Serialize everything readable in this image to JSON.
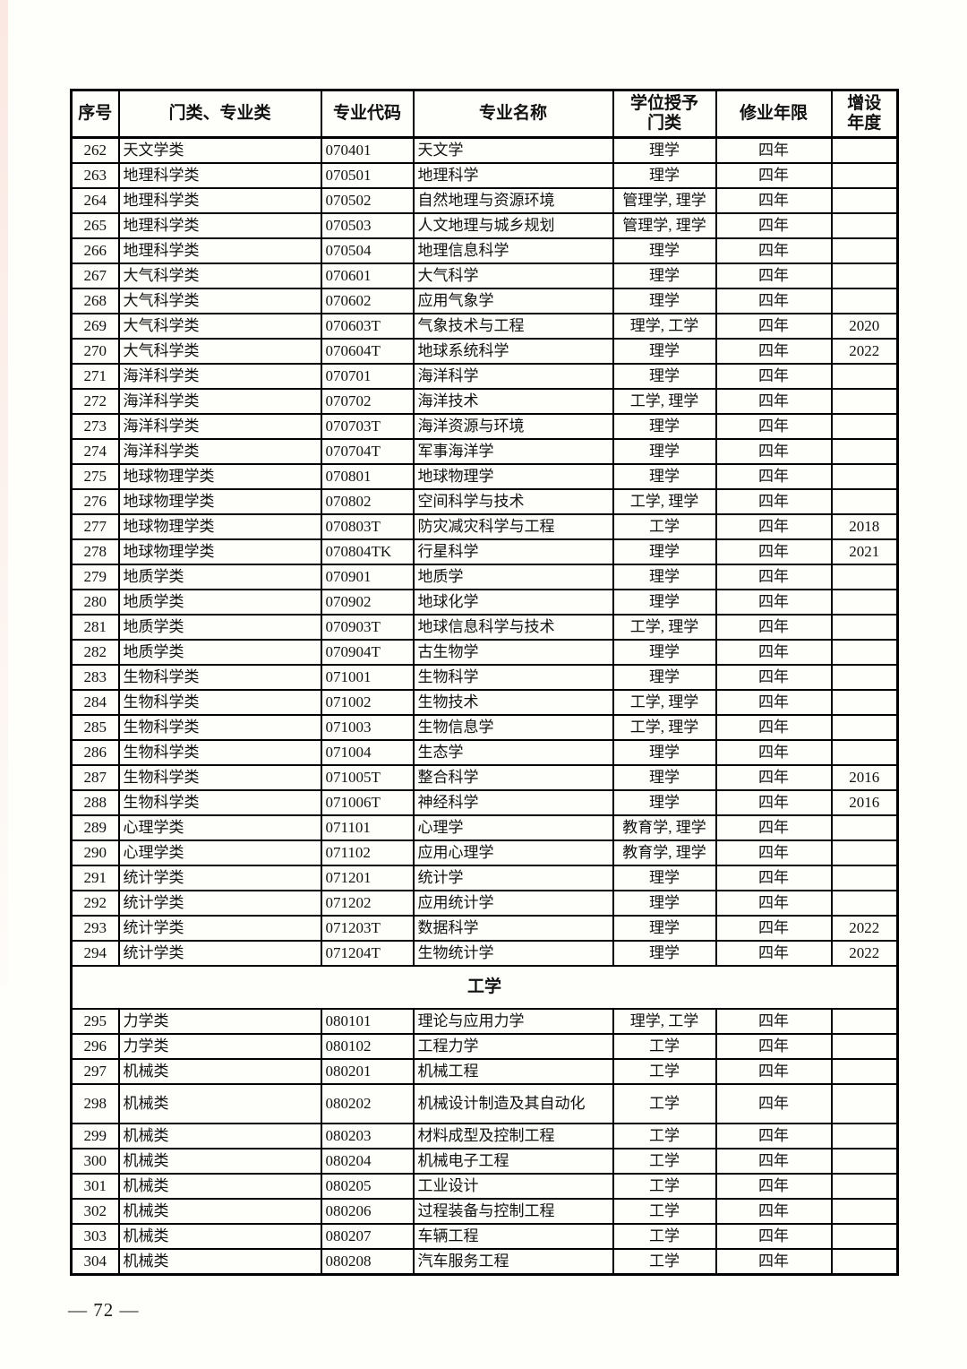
{
  "page": {
    "footer": "— 72 —"
  },
  "table": {
    "headers": [
      "序号",
      "门类、专业类",
      "专业代码",
      "专业名称",
      "学位授予\n门类",
      "修业年限",
      "增设\n年度"
    ],
    "rows": [
      {
        "no": "262",
        "category": "天文学类",
        "code": "070401",
        "name": "天文学",
        "degree": "理学",
        "years": "四年",
        "added": ""
      },
      {
        "no": "263",
        "category": "地理科学类",
        "code": "070501",
        "name": "地理科学",
        "degree": "理学",
        "years": "四年",
        "added": ""
      },
      {
        "no": "264",
        "category": "地理科学类",
        "code": "070502",
        "name": "自然地理与资源环境",
        "degree": "管理学, 理学",
        "years": "四年",
        "added": ""
      },
      {
        "no": "265",
        "category": "地理科学类",
        "code": "070503",
        "name": "人文地理与城乡规划",
        "degree": "管理学, 理学",
        "years": "四年",
        "added": ""
      },
      {
        "no": "266",
        "category": "地理科学类",
        "code": "070504",
        "name": "地理信息科学",
        "degree": "理学",
        "years": "四年",
        "added": ""
      },
      {
        "no": "267",
        "category": "大气科学类",
        "code": "070601",
        "name": "大气科学",
        "degree": "理学",
        "years": "四年",
        "added": ""
      },
      {
        "no": "268",
        "category": "大气科学类",
        "code": "070602",
        "name": "应用气象学",
        "degree": "理学",
        "years": "四年",
        "added": ""
      },
      {
        "no": "269",
        "category": "大气科学类",
        "code": "070603T",
        "name": "气象技术与工程",
        "degree": "理学, 工学",
        "years": "四年",
        "added": "2020"
      },
      {
        "no": "270",
        "category": "大气科学类",
        "code": "070604T",
        "name": "地球系统科学",
        "degree": "理学",
        "years": "四年",
        "added": "2022"
      },
      {
        "no": "271",
        "category": "海洋科学类",
        "code": "070701",
        "name": "海洋科学",
        "degree": "理学",
        "years": "四年",
        "added": ""
      },
      {
        "no": "272",
        "category": "海洋科学类",
        "code": "070702",
        "name": "海洋技术",
        "degree": "工学, 理学",
        "years": "四年",
        "added": ""
      },
      {
        "no": "273",
        "category": "海洋科学类",
        "code": "070703T",
        "name": "海洋资源与环境",
        "degree": "理学",
        "years": "四年",
        "added": ""
      },
      {
        "no": "274",
        "category": "海洋科学类",
        "code": "070704T",
        "name": "军事海洋学",
        "degree": "理学",
        "years": "四年",
        "added": ""
      },
      {
        "no": "275",
        "category": "地球物理学类",
        "code": "070801",
        "name": "地球物理学",
        "degree": "理学",
        "years": "四年",
        "added": ""
      },
      {
        "no": "276",
        "category": "地球物理学类",
        "code": "070802",
        "name": "空间科学与技术",
        "degree": "工学, 理学",
        "years": "四年",
        "added": ""
      },
      {
        "no": "277",
        "category": "地球物理学类",
        "code": "070803T",
        "name": "防灾减灾科学与工程",
        "degree": "工学",
        "years": "四年",
        "added": "2018"
      },
      {
        "no": "278",
        "category": "地球物理学类",
        "code": "070804TK",
        "name": "行星科学",
        "degree": "理学",
        "years": "四年",
        "added": "2021"
      },
      {
        "no": "279",
        "category": "地质学类",
        "code": "070901",
        "name": "地质学",
        "degree": "理学",
        "years": "四年",
        "added": ""
      },
      {
        "no": "280",
        "category": "地质学类",
        "code": "070902",
        "name": "地球化学",
        "degree": "理学",
        "years": "四年",
        "added": ""
      },
      {
        "no": "281",
        "category": "地质学类",
        "code": "070903T",
        "name": "地球信息科学与技术",
        "degree": "工学, 理学",
        "years": "四年",
        "added": ""
      },
      {
        "no": "282",
        "category": "地质学类",
        "code": "070904T",
        "name": "古生物学",
        "degree": "理学",
        "years": "四年",
        "added": ""
      },
      {
        "no": "283",
        "category": "生物科学类",
        "code": "071001",
        "name": "生物科学",
        "degree": "理学",
        "years": "四年",
        "added": ""
      },
      {
        "no": "284",
        "category": "生物科学类",
        "code": "071002",
        "name": "生物技术",
        "degree": "工学, 理学",
        "years": "四年",
        "added": ""
      },
      {
        "no": "285",
        "category": "生物科学类",
        "code": "071003",
        "name": "生物信息学",
        "degree": "工学, 理学",
        "years": "四年",
        "added": ""
      },
      {
        "no": "286",
        "category": "生物科学类",
        "code": "071004",
        "name": "生态学",
        "degree": "理学",
        "years": "四年",
        "added": ""
      },
      {
        "no": "287",
        "category": "生物科学类",
        "code": "071005T",
        "name": "整合科学",
        "degree": "理学",
        "years": "四年",
        "added": "2016"
      },
      {
        "no": "288",
        "category": "生物科学类",
        "code": "071006T",
        "name": "神经科学",
        "degree": "理学",
        "years": "四年",
        "added": "2016"
      },
      {
        "no": "289",
        "category": "心理学类",
        "code": "071101",
        "name": "心理学",
        "degree": "教育学, 理学",
        "years": "四年",
        "added": ""
      },
      {
        "no": "290",
        "category": "心理学类",
        "code": "071102",
        "name": "应用心理学",
        "degree": "教育学, 理学",
        "years": "四年",
        "added": ""
      },
      {
        "no": "291",
        "category": "统计学类",
        "code": "071201",
        "name": "统计学",
        "degree": "理学",
        "years": "四年",
        "added": ""
      },
      {
        "no": "292",
        "category": "统计学类",
        "code": "071202",
        "name": "应用统计学",
        "degree": "理学",
        "years": "四年",
        "added": ""
      },
      {
        "no": "293",
        "category": "统计学类",
        "code": "071203T",
        "name": "数据科学",
        "degree": "理学",
        "years": "四年",
        "added": "2022"
      },
      {
        "no": "294",
        "category": "统计学类",
        "code": "071204T",
        "name": "生物统计学",
        "degree": "理学",
        "years": "四年",
        "added": "2022"
      },
      {
        "type": "section",
        "label": "工学"
      },
      {
        "no": "295",
        "category": "力学类",
        "code": "080101",
        "name": "理论与应用力学",
        "degree": "理学, 工学",
        "years": "四年",
        "added": ""
      },
      {
        "no": "296",
        "category": "力学类",
        "code": "080102",
        "name": "工程力学",
        "degree": "工学",
        "years": "四年",
        "added": ""
      },
      {
        "no": "297",
        "category": "机械类",
        "code": "080201",
        "name": "机械工程",
        "degree": "工学",
        "years": "四年",
        "added": ""
      },
      {
        "no": "298",
        "category": "机械类",
        "code": "080202",
        "name": "机械设计制造及其自动化",
        "degree": "工学",
        "years": "四年",
        "added": "",
        "tall": true
      },
      {
        "no": "299",
        "category": "机械类",
        "code": "080203",
        "name": "材料成型及控制工程",
        "degree": "工学",
        "years": "四年",
        "added": ""
      },
      {
        "no": "300",
        "category": "机械类",
        "code": "080204",
        "name": "机械电子工程",
        "degree": "工学",
        "years": "四年",
        "added": ""
      },
      {
        "no": "301",
        "category": "机械类",
        "code": "080205",
        "name": "工业设计",
        "degree": "工学",
        "years": "四年",
        "added": ""
      },
      {
        "no": "302",
        "category": "机械类",
        "code": "080206",
        "name": "过程装备与控制工程",
        "degree": "工学",
        "years": "四年",
        "added": ""
      },
      {
        "no": "303",
        "category": "机械类",
        "code": "080207",
        "name": "车辆工程",
        "degree": "工学",
        "years": "四年",
        "added": ""
      },
      {
        "no": "304",
        "category": "机械类",
        "code": "080208",
        "name": "汽车服务工程",
        "degree": "工学",
        "years": "四年",
        "added": ""
      }
    ]
  }
}
